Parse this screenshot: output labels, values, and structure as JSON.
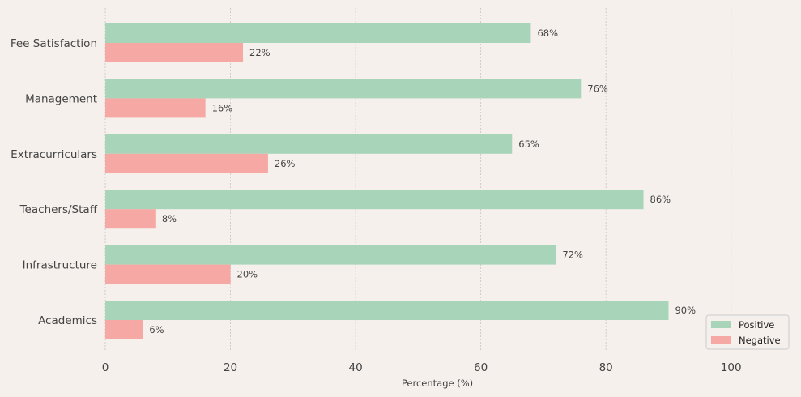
{
  "chart_data": {
    "type": "bar",
    "orientation": "horizontal",
    "title": "",
    "xlabel": "Percentage (%)",
    "ylabel": "",
    "xlim": [
      0,
      110
    ],
    "xticks": [
      0,
      20,
      40,
      60,
      80,
      100
    ],
    "grid": "vertical dashed",
    "categories": [
      "Academics",
      "Infrastructure",
      "Teachers/Staff",
      "Extracurriculars",
      "Management",
      "Fee Satisfaction"
    ],
    "series": [
      {
        "name": "Positive",
        "color": "#a8d5ba",
        "values": [
          90,
          72,
          86,
          65,
          76,
          68
        ]
      },
      {
        "name": "Negative",
        "color": "#f5a8a4",
        "values": [
          6,
          20,
          8,
          26,
          16,
          22
        ]
      }
    ],
    "value_suffix": "%",
    "legend_position": "lower-right"
  }
}
